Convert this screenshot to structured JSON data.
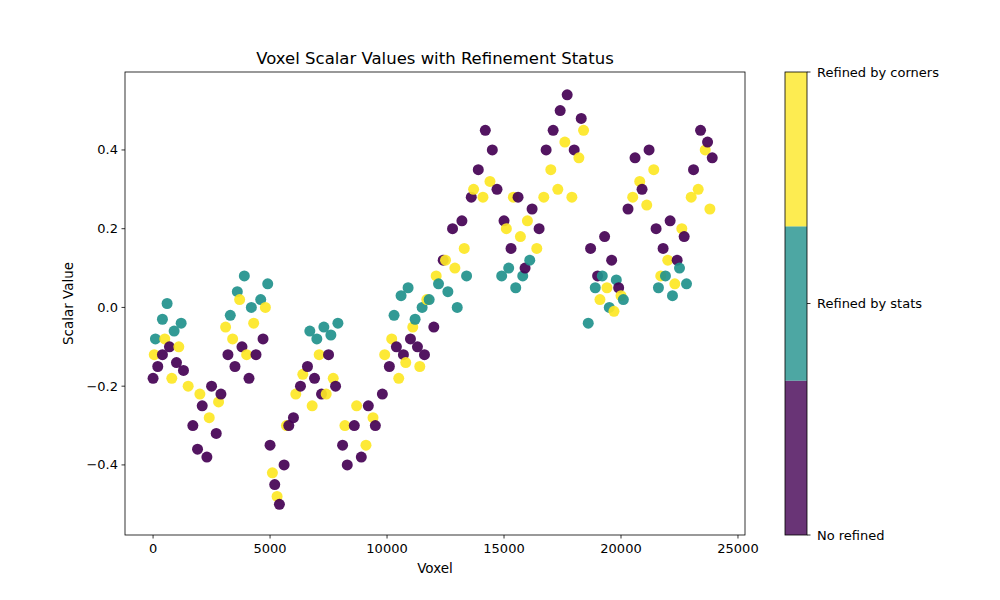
{
  "chart_data": {
    "type": "scatter",
    "title": "Voxel Scalar Values with Refinement Status",
    "x_label": "Voxel",
    "y_label": "Scalar Value",
    "xlim": [
      -1200,
      25300
    ],
    "ylim": [
      -0.578,
      0.598
    ],
    "xticks": [
      0,
      5000,
      10000,
      15000,
      20000,
      25000
    ],
    "yticks": [
      {
        "value": -0.4,
        "label": "−0.4"
      },
      {
        "value": -0.2,
        "label": "−0.2"
      },
      {
        "value": 0,
        "label": "0.0"
      },
      0.2,
      0.4
    ],
    "grid": false,
    "marker": "circle",
    "colorbar": {
      "range": [
        0,
        2
      ],
      "ticks": [
        0,
        1,
        2
      ]
    },
    "series": [
      {
        "name": "No refined",
        "color": "#440154",
        "x": [
          0,
          200,
          400,
          700,
          1000,
          1300,
          1700,
          1900,
          2100,
          2300,
          2500,
          2700,
          2900,
          3200,
          3500,
          3800,
          4100,
          4400,
          4700,
          5000,
          5200,
          5400,
          5600,
          5800,
          6000,
          6300,
          6600,
          6900,
          7200,
          7500,
          7800,
          8100,
          8300,
          8600,
          8900,
          9200,
          9500,
          9800,
          10100,
          10400,
          10700,
          11000,
          11300,
          11600,
          12000,
          12400,
          12800,
          13200,
          13600,
          13900,
          14200,
          14500,
          14700,
          15000,
          15300,
          15600,
          15900,
          16200,
          16500,
          16800,
          17100,
          17400,
          17700,
          18000,
          18300,
          18700,
          19000,
          19300,
          19600,
          19900,
          20300,
          20600,
          20900,
          21200,
          21500,
          21800,
          22100,
          22400,
          22700,
          23100,
          23400,
          23700,
          23900
        ],
        "values": [
          -0.18,
          -0.15,
          -0.12,
          -0.1,
          -0.14,
          -0.16,
          -0.3,
          -0.36,
          -0.25,
          -0.38,
          -0.2,
          -0.32,
          -0.22,
          -0.12,
          -0.15,
          -0.1,
          -0.18,
          -0.12,
          -0.08,
          -0.35,
          -0.45,
          -0.5,
          -0.4,
          -0.3,
          -0.28,
          -0.2,
          -0.15,
          -0.18,
          -0.22,
          -0.12,
          -0.2,
          -0.35,
          -0.4,
          -0.3,
          -0.38,
          -0.25,
          -0.3,
          -0.22,
          -0.15,
          -0.1,
          -0.12,
          -0.08,
          -0.1,
          -0.12,
          -0.05,
          0.12,
          0.2,
          0.22,
          0.28,
          0.35,
          0.45,
          0.4,
          0.3,
          0.22,
          0.15,
          0.28,
          0.1,
          0.25,
          0.2,
          0.4,
          0.45,
          0.5,
          0.54,
          0.4,
          0.48,
          0.15,
          0.08,
          0.18,
          0.12,
          0.05,
          0.25,
          0.38,
          0.3,
          0.4,
          0.2,
          0.15,
          0.22,
          0.12,
          0.18,
          0.35,
          0.45,
          0.42,
          0.38
        ]
      },
      {
        "name": "Refined by stats",
        "color": "#21918c",
        "x": [
          100,
          400,
          600,
          900,
          1200,
          3300,
          3600,
          3900,
          4200,
          4600,
          4900,
          6700,
          7000,
          7300,
          7600,
          7900,
          10300,
          10600,
          10900,
          11200,
          11500,
          11800,
          12200,
          12600,
          13000,
          13400,
          14900,
          15200,
          15500,
          15800,
          16100,
          18600,
          18900,
          19200,
          19500,
          19800,
          20100,
          21600,
          21900,
          22200,
          22500,
          22800
        ],
        "values": [
          -0.08,
          -0.03,
          0.01,
          -0.06,
          -0.04,
          -0.02,
          0.04,
          0.08,
          0.0,
          0.02,
          0.06,
          -0.06,
          -0.08,
          -0.05,
          -0.07,
          -0.04,
          -0.02,
          0.03,
          0.05,
          -0.03,
          0.0,
          0.02,
          0.06,
          0.04,
          0.0,
          0.08,
          0.08,
          0.1,
          0.05,
          0.08,
          0.12,
          -0.04,
          0.05,
          0.08,
          0.0,
          0.07,
          0.02,
          0.05,
          0.08,
          0.03,
          0.1,
          0.06
        ]
      },
      {
        "name": "Refined by corners",
        "color": "#fde725",
        "x": [
          50,
          500,
          800,
          1100,
          1500,
          2000,
          2400,
          2800,
          3100,
          3400,
          3700,
          4000,
          4300,
          4800,
          5100,
          5300,
          5700,
          6100,
          6400,
          6800,
          7100,
          7400,
          7700,
          8200,
          8700,
          9100,
          9400,
          9900,
          10200,
          10500,
          10800,
          11100,
          11400,
          11700,
          12100,
          12500,
          12900,
          13300,
          13700,
          14100,
          14400,
          15100,
          15400,
          15700,
          16000,
          16400,
          16700,
          17000,
          17300,
          17600,
          17900,
          18200,
          18400,
          19100,
          19400,
          19700,
          20000,
          20500,
          20800,
          21100,
          21400,
          21700,
          22000,
          22300,
          22600,
          23000,
          23300,
          23600,
          23800
        ],
        "values": [
          -0.12,
          -0.08,
          -0.18,
          -0.1,
          -0.2,
          -0.22,
          -0.28,
          -0.24,
          -0.05,
          -0.08,
          0.02,
          -0.12,
          -0.04,
          0.0,
          -0.42,
          -0.48,
          -0.3,
          -0.22,
          -0.17,
          -0.25,
          -0.12,
          -0.22,
          -0.18,
          -0.3,
          -0.25,
          -0.35,
          -0.28,
          -0.12,
          -0.08,
          -0.18,
          -0.14,
          -0.05,
          -0.15,
          0.02,
          0.08,
          0.12,
          0.1,
          0.15,
          0.3,
          0.28,
          0.32,
          0.2,
          0.28,
          0.18,
          0.22,
          0.15,
          0.28,
          0.35,
          0.3,
          0.42,
          0.28,
          0.38,
          0.45,
          0.02,
          0.05,
          -0.01,
          0.03,
          0.28,
          0.32,
          0.26,
          0.35,
          0.08,
          0.12,
          0.06,
          0.2,
          0.28,
          0.3,
          0.4,
          0.25
        ]
      }
    ]
  }
}
